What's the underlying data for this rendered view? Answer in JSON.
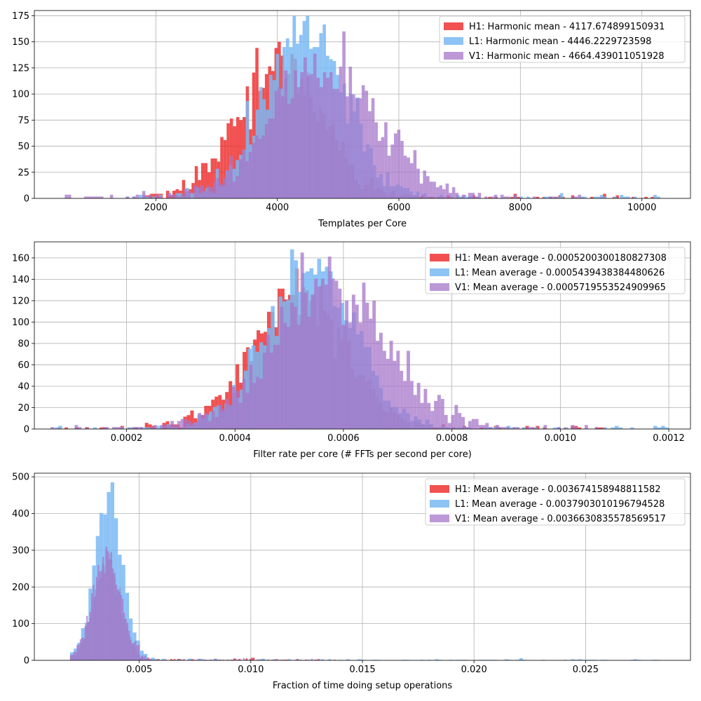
{
  "chart_data": [
    {
      "type": "histogram",
      "title": "",
      "xlabel": "Templates per Core",
      "ylabel": "",
      "xlim": [
        0,
        10800
      ],
      "ylim": [
        0,
        180
      ],
      "xticks": [
        2000,
        4000,
        6000,
        8000,
        10000
      ],
      "xtick_labels": [
        "2000",
        "4000",
        "6000",
        "8000",
        "10000"
      ],
      "yticks": [
        0,
        25,
        50,
        75,
        100,
        125,
        150,
        175
      ],
      "ytick_labels": [
        "0",
        "25",
        "50",
        "75",
        "100",
        "125",
        "150",
        "175"
      ],
      "grid": true,
      "legend_position": "top-right",
      "series": [
        {
          "name": "H1: Harmonic mean  - 4117.674899150931",
          "color": "#ee3333",
          "opacity": 0.85,
          "mean": 4050,
          "sd": 700,
          "n": 3000,
          "min": 1800,
          "max": 10200,
          "peak": 150,
          "seed": 11
        },
        {
          "name": "L1: Harmonic mean  - 4446.2229723598",
          "color": "#7ab8f5",
          "opacity": 0.85,
          "mean": 4450,
          "sd": 650,
          "n": 3000,
          "min": 1500,
          "max": 10300,
          "peak": 175,
          "seed": 23
        },
        {
          "name": "V1: Harmonic mean  - 4664.439011051928",
          "color": "#a676c9",
          "opacity": 0.75,
          "mean": 4750,
          "sd": 850,
          "n": 3000,
          "min": 500,
          "max": 9000,
          "peak": 160,
          "seed": 37
        }
      ]
    },
    {
      "type": "histogram",
      "title": "",
      "xlabel": "Filter rate per core (# FFTs per second per core)",
      "ylabel": "",
      "xlim": [
        3e-05,
        0.00124
      ],
      "ylim": [
        0,
        175
      ],
      "xticks": [
        0.0002,
        0.0004,
        0.0006,
        0.0008,
        0.001,
        0.0012
      ],
      "xtick_labels": [
        "0.0002",
        "0.0004",
        "0.0006",
        "0.0008",
        "0.0010",
        "0.0012"
      ],
      "yticks": [
        0,
        20,
        40,
        60,
        80,
        100,
        120,
        140,
        160
      ],
      "ytick_labels": [
        "0",
        "20",
        "40",
        "60",
        "80",
        "100",
        "120",
        "140",
        "160"
      ],
      "grid": true,
      "legend_position": "top-right",
      "series": [
        {
          "name": "H1: Mean average - 0.0005200300180827308",
          "color": "#ee3333",
          "opacity": 0.85,
          "mean": 0.000515,
          "sd": 8.5e-05,
          "n": 3000,
          "min": 6e-05,
          "max": 0.00109,
          "peak": 150,
          "seed": 41
        },
        {
          "name": "L1: Mean average - 0.0005439438384480626",
          "color": "#7ab8f5",
          "opacity": 0.85,
          "mean": 0.00054,
          "sd": 8e-05,
          "n": 3000,
          "min": 6e-05,
          "max": 0.0012,
          "peak": 168,
          "seed": 53
        },
        {
          "name": "V1: Mean average - 0.0005719553524909965",
          "color": "#a676c9",
          "opacity": 0.75,
          "mean": 0.000575,
          "sd": 0.0001,
          "n": 3000,
          "min": 6e-05,
          "max": 0.00107,
          "peak": 165,
          "seed": 67
        }
      ]
    },
    {
      "type": "histogram",
      "title": "",
      "xlabel": "Fraction of time doing setup operations",
      "ylabel": "",
      "xlim": [
        0.0003,
        0.0297
      ],
      "ylim": [
        0,
        510
      ],
      "xticks": [
        0.005,
        0.01,
        0.015,
        0.02,
        0.025
      ],
      "xtick_labels": [
        "0.005",
        "0.010",
        "0.015",
        "0.020",
        "0.025"
      ],
      "yticks": [
        0,
        100,
        200,
        300,
        400,
        500
      ],
      "ytick_labels": [
        "0",
        "100",
        "200",
        "300",
        "400",
        "500"
      ],
      "grid": true,
      "legend_position": "top-right",
      "series": [
        {
          "name": "H1: Mean average - 0.003674158948811582",
          "color": "#ee3333",
          "opacity": 0.85,
          "mean": 0.00355,
          "sd": 0.0006,
          "n": 3000,
          "min": 0.0019,
          "max": 0.0145,
          "peak": 300,
          "seed": 71
        },
        {
          "name": "L1: Mean average - 0.0037903010196794528",
          "color": "#7ab8f5",
          "opacity": 0.85,
          "mean": 0.00365,
          "sd": 0.00062,
          "n": 3000,
          "min": 0.0019,
          "max": 0.0283,
          "peak": 485,
          "seed": 83
        },
        {
          "name": "V1: Mean average - 0.0036630835578569517",
          "color": "#a676c9",
          "opacity": 0.75,
          "mean": 0.00355,
          "sd": 0.00065,
          "n": 3000,
          "min": 0.0019,
          "max": 0.0135,
          "peak": 310,
          "seed": 97
        }
      ]
    }
  ]
}
